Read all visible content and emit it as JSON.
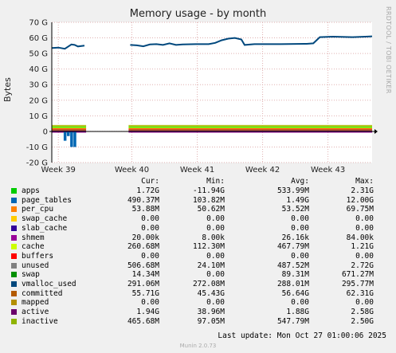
{
  "chart_data": {
    "type": "area",
    "title": "Memory usage - by month",
    "ylabel": "Bytes",
    "ylim": [
      -20,
      70
    ],
    "y_ticks": [
      -20,
      -10,
      0,
      10,
      20,
      30,
      40,
      50,
      60,
      70
    ],
    "y_tick_labels": [
      "-20 G",
      "-10 G",
      "0",
      "10 G",
      "20 G",
      "30 G",
      "40 G",
      "50 G",
      "60 G",
      "70 G"
    ],
    "x_ticks": [
      "Week 39",
      "Week 40",
      "Week 41",
      "Week 42",
      "Week 43"
    ],
    "grid": true,
    "committed_line": [
      [
        0,
        53.5
      ],
      [
        2,
        53.8
      ],
      [
        4,
        53.0
      ],
      [
        6,
        55.8
      ],
      [
        7,
        55.5
      ],
      [
        8,
        54.5
      ],
      [
        10,
        55.0
      ],
      [
        24,
        55.5
      ],
      [
        26,
        55.2
      ],
      [
        28,
        54.6
      ],
      [
        30,
        55.8
      ],
      [
        32,
        56.0
      ],
      [
        34,
        55.5
      ],
      [
        36,
        56.5
      ],
      [
        38,
        55.5
      ],
      [
        40,
        55.8
      ],
      [
        44,
        56.0
      ],
      [
        48,
        56.0
      ],
      [
        50,
        56.8
      ],
      [
        52,
        58.5
      ],
      [
        54,
        59.5
      ],
      [
        56,
        60.0
      ],
      [
        58,
        59.0
      ],
      [
        59,
        55.5
      ],
      [
        62,
        56.0
      ],
      [
        70,
        56.0
      ],
      [
        78,
        56.2
      ],
      [
        80,
        56.5
      ],
      [
        82,
        60.5
      ],
      [
        86,
        60.8
      ],
      [
        92,
        60.5
      ],
      [
        96,
        60.8
      ],
      [
        98,
        61.0
      ]
    ],
    "dip_series": {
      "name": "page_tables",
      "values": [
        [
          4,
          -6
        ],
        [
          5,
          -3
        ],
        [
          6,
          -10
        ],
        [
          7,
          -10
        ]
      ]
    },
    "gap": [
      10.5,
      23.5
    ],
    "series": [
      {
        "name": "apps",
        "color": "#00cc00",
        "cur": "1.72G",
        "min": "-11.94G",
        "avg": "533.99M",
        "max": "2.31G"
      },
      {
        "name": "page_tables",
        "color": "#0066b3",
        "cur": "490.37M",
        "min": "103.82M",
        "avg": "1.49G",
        "max": "12.00G"
      },
      {
        "name": "per_cpu",
        "color": "#ff8000",
        "cur": "53.88M",
        "min": "50.62M",
        "avg": "53.52M",
        "max": "69.75M"
      },
      {
        "name": "swap_cache",
        "color": "#ffcc00",
        "cur": "0.00",
        "min": "0.00",
        "avg": "0.00",
        "max": "0.00"
      },
      {
        "name": "slab_cache",
        "color": "#330099",
        "cur": "0.00",
        "min": "0.00",
        "avg": "0.00",
        "max": "0.00"
      },
      {
        "name": "shmem",
        "color": "#990099",
        "cur": "20.00k",
        "min": "8.00k",
        "avg": "26.16k",
        "max": "84.00k"
      },
      {
        "name": "cache",
        "color": "#ccff00",
        "cur": "260.68M",
        "min": "112.30M",
        "avg": "467.79M",
        "max": "1.21G"
      },
      {
        "name": "buffers",
        "color": "#ff0000",
        "cur": "0.00",
        "min": "0.00",
        "avg": "0.00",
        "max": "0.00"
      },
      {
        "name": "unused",
        "color": "#808080",
        "cur": "506.68M",
        "min": "24.10M",
        "avg": "487.52M",
        "max": "2.72G"
      },
      {
        "name": "swap",
        "color": "#008f00",
        "cur": "14.34M",
        "min": "0.00",
        "avg": "89.31M",
        "max": "671.27M"
      },
      {
        "name": "vmalloc_used",
        "color": "#00487d",
        "cur": "291.06M",
        "min": "272.08M",
        "avg": "288.01M",
        "max": "295.77M"
      },
      {
        "name": "committed",
        "color": "#b35a00",
        "cur": "55.71G",
        "min": "45.43G",
        "avg": "56.64G",
        "max": "62.31G"
      },
      {
        "name": "mapped",
        "color": "#b38f00",
        "cur": "0.00",
        "min": "0.00",
        "avg": "0.00",
        "max": "0.00"
      },
      {
        "name": "active",
        "color": "#6b006b",
        "cur": "1.94G",
        "min": "38.96M",
        "avg": "1.88G",
        "max": "2.58G"
      },
      {
        "name": "inactive",
        "color": "#8fb300",
        "cur": "465.68M",
        "min": "97.05M",
        "avg": "547.79M",
        "max": "2.50G"
      }
    ]
  },
  "legend_headers": {
    "cur": "Cur:",
    "min": "Min:",
    "avg": "Avg:",
    "max": "Max:"
  },
  "last_update": "Last update: Mon Oct 27 01:00:06 2025",
  "watermark": "RRDTOOL / TOBI OETIKER",
  "footer": "Munin 2.0.73"
}
